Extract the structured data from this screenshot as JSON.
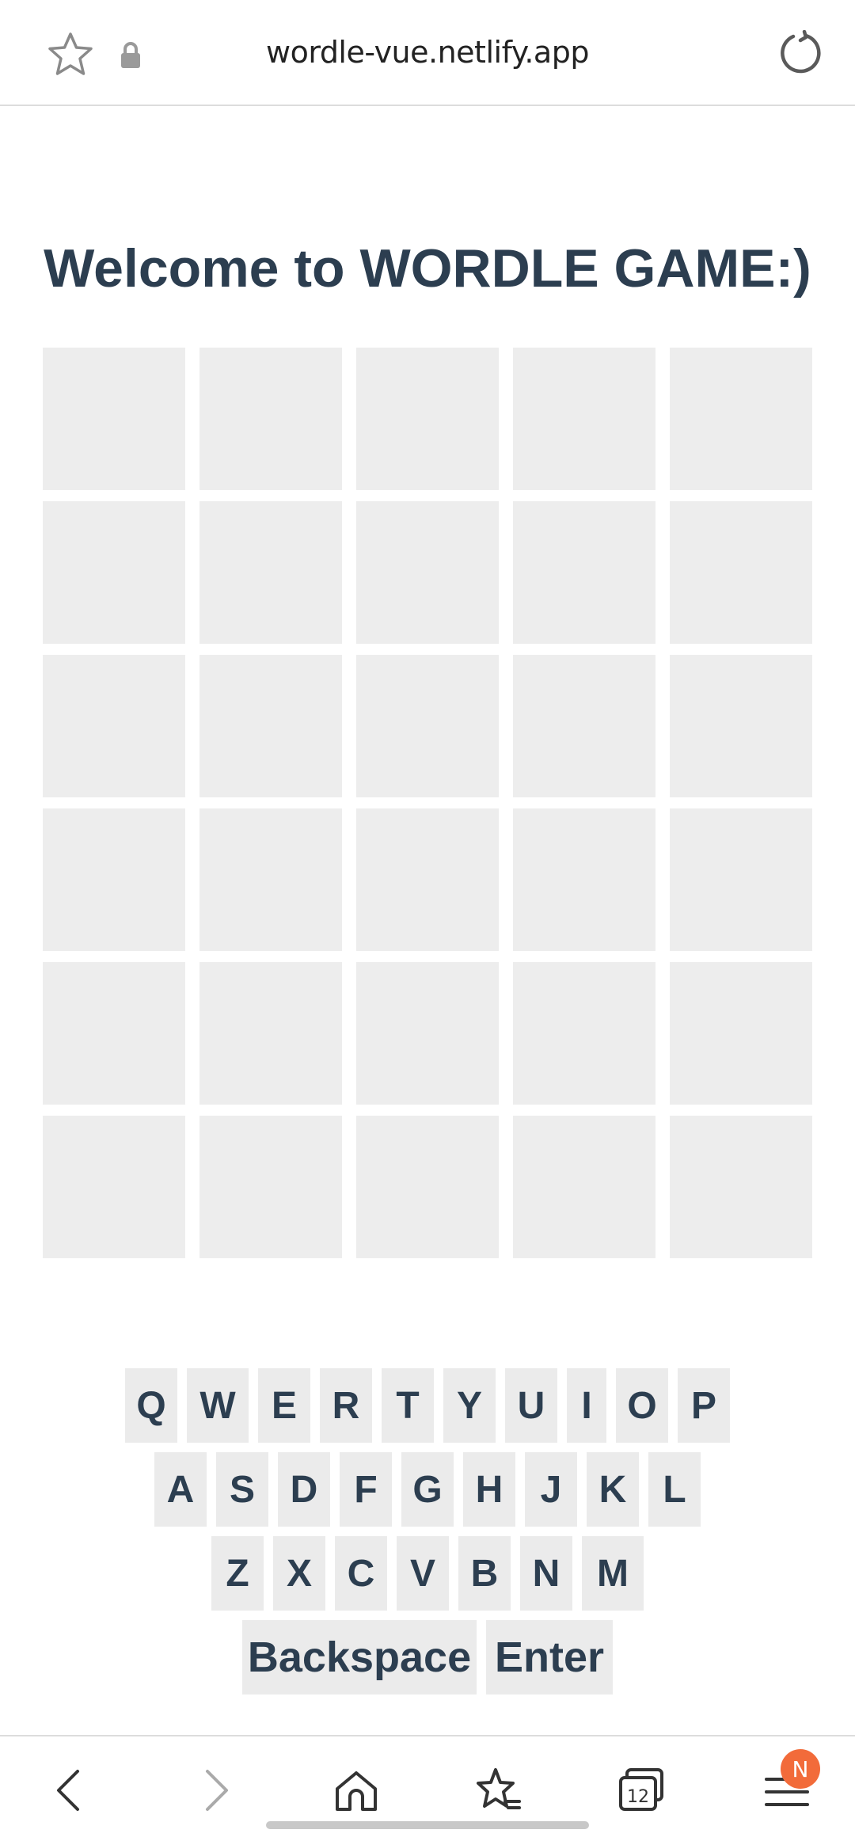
{
  "browser": {
    "url": "wordle-vue.netlify.app",
    "icons": {
      "bookmark": "star-icon",
      "secure": "lock-icon",
      "reload": "reload-icon"
    }
  },
  "page": {
    "title": "Welcome to WORDLE GAME:)"
  },
  "board": {
    "rows": 6,
    "cols": 5,
    "tile_color": "#ededed"
  },
  "keyboard": {
    "rows": [
      [
        "Q",
        "W",
        "E",
        "R",
        "T",
        "Y",
        "U",
        "I",
        "O",
        "P"
      ],
      [
        "A",
        "S",
        "D",
        "F",
        "G",
        "H",
        "J",
        "K",
        "L"
      ],
      [
        "Z",
        "X",
        "C",
        "V",
        "B",
        "N",
        "M"
      ],
      [
        "Backspace",
        "Enter"
      ]
    ],
    "key_color": "#ebebeb",
    "text_color": "#2c3e50"
  },
  "bottom_nav": {
    "items": [
      "back-icon",
      "forward-icon",
      "home-icon",
      "bookmarks-icon",
      "tabs-icon",
      "menu-icon"
    ],
    "tab_count": "12",
    "menu_badge": "N",
    "badge_color": "#f26b3a"
  }
}
